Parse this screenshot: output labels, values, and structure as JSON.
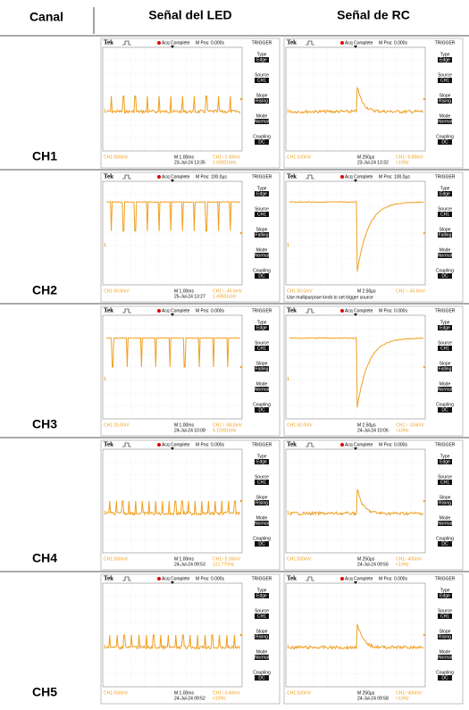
{
  "header": {
    "canal": "Canal",
    "led": "Señal del LED",
    "rc": "Señal de RC"
  },
  "rows": [
    {
      "channel": "CH1",
      "led": {
        "brand": "Tek",
        "status": "Acq Complete",
        "position": "M Pos: 0.000s",
        "menu_title": "TRIGGER",
        "menu": [
          {
            "label": "Type",
            "value": "Edge"
          },
          {
            "label": "Source",
            "value": "CH1"
          },
          {
            "label": "Slope",
            "value": "Rising"
          },
          {
            "label": "Mode",
            "value": "Normal"
          },
          {
            "label": "Coupling",
            "value": "DC"
          }
        ],
        "scale": "CH1 500mV",
        "timebase": "M 1.00ms",
        "date": "23-Jul-24 13:35",
        "trigger": "CH1 ∕ 2.40mV",
        "frequency": "1.00001kHz"
      },
      "rc": {
        "brand": "Tek",
        "status": "Acq Complete",
        "position": "M Pos: 0.000s",
        "menu_title": "TRIGGER",
        "menu": [
          {
            "label": "Type",
            "value": "Edge"
          },
          {
            "label": "Source",
            "value": "CH1"
          },
          {
            "label": "Slope",
            "value": "Rising"
          },
          {
            "label": "Mode",
            "value": "Normal"
          },
          {
            "label": "Coupling",
            "value": "DC"
          }
        ],
        "scale": "CH1 100mV",
        "timebase": "M 250µs",
        "date": "23-Jul-24 13:32",
        "trigger": "CH1 ∕ 6.80mV",
        "frequency": "<10Hz"
      }
    },
    {
      "channel": "CH2",
      "led": {
        "brand": "Tek",
        "status": "Acq Complete",
        "position": "M Pos: 100.0µs",
        "menu_title": "TRIGGER",
        "menu": [
          {
            "label": "Type",
            "value": "Edge"
          },
          {
            "label": "Source",
            "value": "CH1"
          },
          {
            "label": "Slope",
            "value": "Falling"
          },
          {
            "label": "Mode",
            "value": "Normal"
          },
          {
            "label": "Coupling",
            "value": "DC"
          }
        ],
        "scale": "CH1 50.0mV",
        "timebase": "M 1.00ms",
        "date": "25-Jul-24 13:27",
        "trigger": "CH1 \\ -45.0mV",
        "frequency": "1.49501kHz"
      },
      "rc": {
        "brand": "Tek",
        "status": "Acq Complete",
        "position": "M Pos: 100.0µs",
        "menu_title": "TRIGGER",
        "menu": [
          {
            "label": "Type",
            "value": "Edge"
          },
          {
            "label": "Source",
            "value": "CH1"
          },
          {
            "label": "Slope",
            "value": "Falling"
          },
          {
            "label": "Mode",
            "value": "Normal"
          },
          {
            "label": "Coupling",
            "value": "DC"
          }
        ],
        "scale": "CH1 50.0mV",
        "timebase": "M 2.50µs",
        "note": "Use multipurpose knob to set trigger source",
        "trigger": "CH1 \\ -45.0mV"
      }
    },
    {
      "channel": "CH3",
      "led": {
        "brand": "Tek",
        "status": "Acq Complete",
        "position": "M Pos: 0.000s",
        "menu_title": "TRIGGER",
        "menu": [
          {
            "label": "Type",
            "value": "Edge"
          },
          {
            "label": "Source",
            "value": "CH1"
          },
          {
            "label": "Slope",
            "value": "Falling"
          },
          {
            "label": "Mode",
            "value": "Normal"
          },
          {
            "label": "Coupling",
            "value": "DC"
          }
        ],
        "scale": "CH1 20.0mV",
        "timebase": "M 1.00ms",
        "date": "24-Jul-24 10:08",
        "trigger": "CH1 \\ -58.0mV",
        "frequency": "4.15001kHz"
      },
      "rc": {
        "brand": "Tek",
        "status": "Acq Complete",
        "position": "M Pos: 0.000s",
        "menu_title": "TRIGGER",
        "menu": [
          {
            "label": "Type",
            "value": "Edge"
          },
          {
            "label": "Source",
            "value": "CH1"
          },
          {
            "label": "Slope",
            "value": "Falling"
          },
          {
            "label": "Mode",
            "value": "Normal"
          },
          {
            "label": "Coupling",
            "value": "DC"
          }
        ],
        "scale": "CH1 50.0mV",
        "timebase": "M 2.50µs",
        "date": "24-Jul-24 10:06",
        "trigger": "CH1 \\ -104mV",
        "frequency": "<10Hz"
      }
    },
    {
      "channel": "CH4",
      "led": {
        "brand": "Tek",
        "status": "Acq Complete",
        "position": "M Pos: 0.000s",
        "menu_title": "TRIGGER",
        "menu": [
          {
            "label": "Type",
            "value": "Edge"
          },
          {
            "label": "Source",
            "value": "CH1"
          },
          {
            "label": "Slope",
            "value": "Rising"
          },
          {
            "label": "Mode",
            "value": "Normal"
          },
          {
            "label": "Coupling",
            "value": "DC"
          }
        ],
        "scale": "CH1 500mV",
        "timebase": "M 1.00ms",
        "date": "24-Jul-24 09:53",
        "trigger": "CH1 ∕ 5.00mV",
        "frequency": "121.770Hz"
      },
      "rc": {
        "brand": "Tek",
        "status": "Acq Complete",
        "position": "M Pos: 0.000s",
        "menu_title": "TRIGGER",
        "menu": [
          {
            "label": "Type",
            "value": "Edge"
          },
          {
            "label": "Source",
            "value": "CH1"
          },
          {
            "label": "Slope",
            "value": "Rising"
          },
          {
            "label": "Mode",
            "value": "Normal"
          },
          {
            "label": "Coupling",
            "value": "DC"
          }
        ],
        "scale": "CH1 500mV",
        "timebase": "M 250µs",
        "date": "24-Jul-24 09:56",
        "trigger": "CH1 ∕ 400mV",
        "frequency": "<10Hz"
      }
    },
    {
      "channel": "CH5",
      "led": {
        "brand": "Tek",
        "status": "Acq Complete",
        "position": "M Pos: 0.000s",
        "menu_title": "TRIGGER",
        "menu": [
          {
            "label": "Type",
            "value": "Edge"
          },
          {
            "label": "Source",
            "value": "CH1"
          },
          {
            "label": "Slope",
            "value": "Rising"
          },
          {
            "label": "Mode",
            "value": "Normal"
          },
          {
            "label": "Coupling",
            "value": "DC"
          }
        ],
        "scale": "CH1 500mV",
        "timebase": "M 1.00ms",
        "date": "24-Jul-24 09:52",
        "trigger": "CH1 ∕ 3.40mV",
        "frequency": "<10Hz"
      },
      "rc": {
        "brand": "Tek",
        "status": "Acq Complete",
        "position": "M Pos: 0.000s",
        "menu_title": "TRIGGER",
        "menu": [
          {
            "label": "Type",
            "value": "Edge"
          },
          {
            "label": "Source",
            "value": "CH1"
          },
          {
            "label": "Slope",
            "value": "Rising"
          },
          {
            "label": "Mode",
            "value": "Normal"
          },
          {
            "label": "Coupling",
            "value": "DC"
          }
        ],
        "scale": "CH1 500mV",
        "timebase": "M 250µs",
        "date": "24-Jul-24 09:58",
        "trigger": "CH1 ∕ 400mV",
        "frequency": "<10Hz"
      }
    }
  ]
}
